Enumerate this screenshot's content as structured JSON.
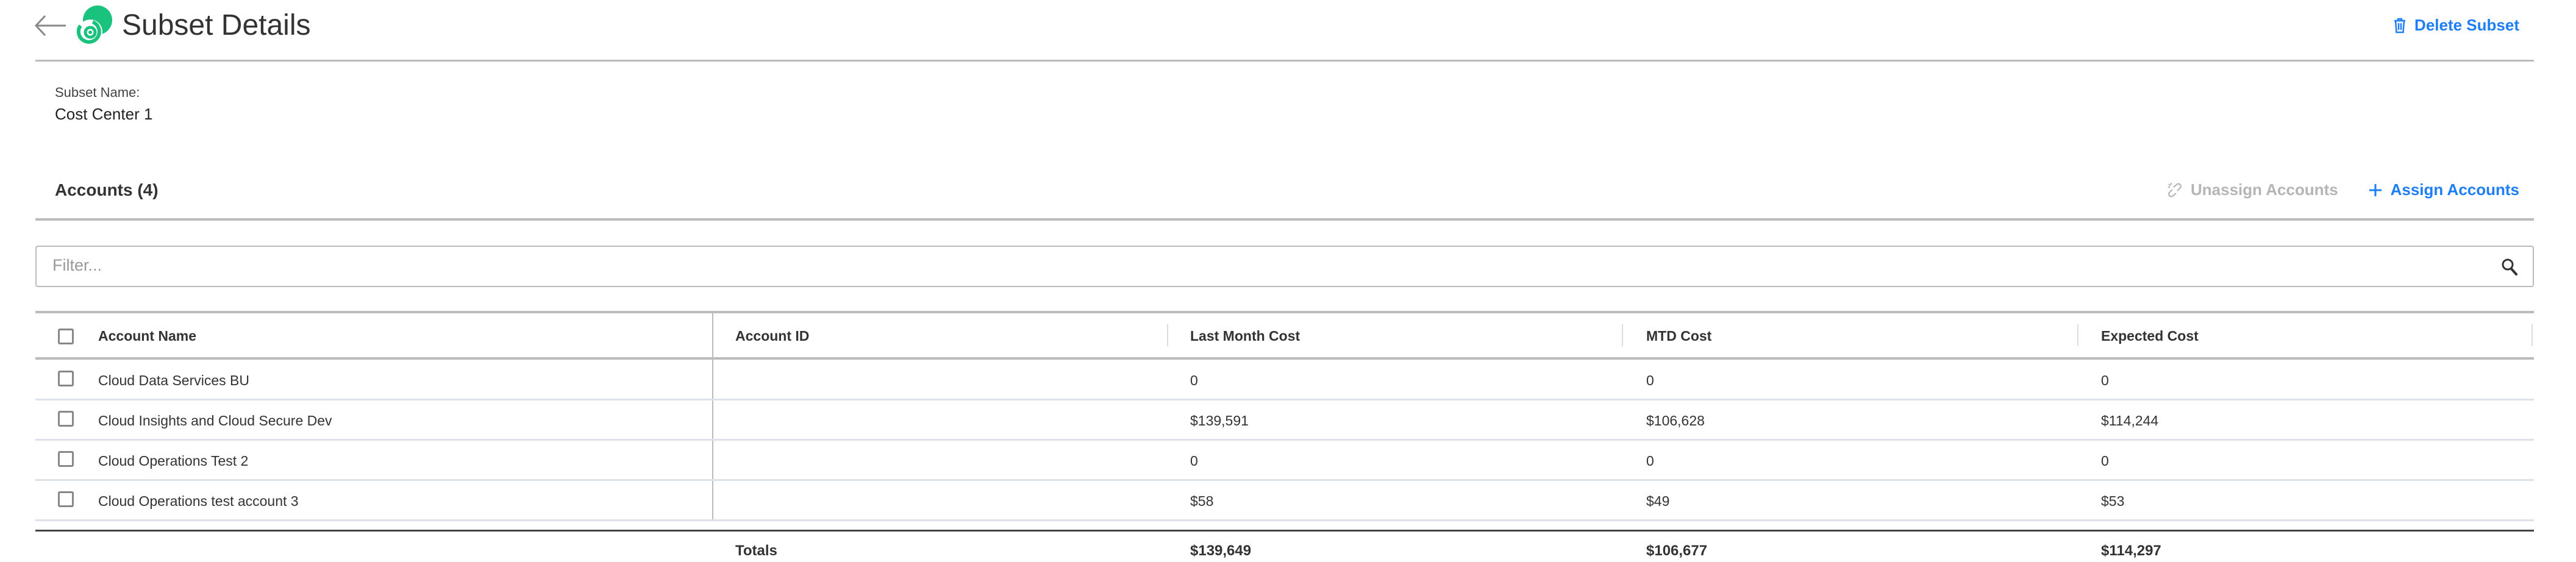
{
  "header": {
    "title": "Subset Details",
    "back_icon": "arrow-left-icon",
    "logo_icon": "green-spiral-logo",
    "delete_label": "Delete Subset",
    "delete_icon": "trash-icon"
  },
  "subset": {
    "name_label": "Subset Name:",
    "name_value": "Cost Center 1"
  },
  "accounts": {
    "title": "Accounts (4)",
    "unassign_label": "Unassign Accounts",
    "unassign_icon": "unlink-icon",
    "assign_label": "Assign Accounts",
    "assign_icon": "plus-icon",
    "filter_placeholder": "Filter...",
    "filter_value": "",
    "search_icon": "search-icon"
  },
  "table": {
    "columns": [
      "Account Name",
      "Account ID",
      "Last Month Cost",
      "MTD Cost",
      "Expected Cost"
    ],
    "rows": [
      {
        "name": "Cloud Data Services BU",
        "id": "",
        "last_month": "0",
        "mtd": "0",
        "expected": "0"
      },
      {
        "name": "Cloud Insights and Cloud Secure Dev",
        "id": "",
        "last_month": "$139,591",
        "mtd": "$106,628",
        "expected": "$114,244"
      },
      {
        "name": "Cloud Operations Test 2",
        "id": "",
        "last_month": "0",
        "mtd": "0",
        "expected": "0"
      },
      {
        "name": "Cloud Operations test account 3",
        "id": "",
        "last_month": "$58",
        "mtd": "$49",
        "expected": "$53"
      }
    ],
    "totals": {
      "label": "Totals",
      "last_month": "$139,649",
      "mtd": "$106,677",
      "expected": "$114,297"
    }
  },
  "colors": {
    "accent": "#1e7ef7",
    "brand_green": "#19c27d",
    "disabled": "#b5b5b5"
  }
}
